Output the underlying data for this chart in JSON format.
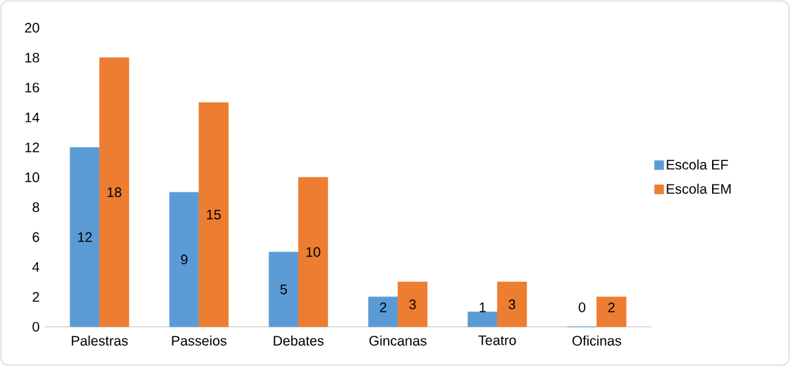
{
  "chart_data": {
    "type": "bar",
    "categories": [
      "Palestras",
      "Passeios",
      "Debates",
      "Gincanas",
      "Teatro",
      "Oficinas"
    ],
    "series": [
      {
        "name": "Escola EF",
        "color": "#5b9bd5",
        "values": [
          12,
          9,
          5,
          2,
          1,
          0
        ]
      },
      {
        "name": "Escola EM",
        "color": "#ed7d31",
        "values": [
          18,
          15,
          10,
          3,
          3,
          2
        ]
      }
    ],
    "ylim": [
      0,
      20
    ],
    "yticks": [
      0,
      2,
      4,
      6,
      8,
      10,
      12,
      14,
      16,
      18,
      20
    ],
    "legend": "right",
    "data_labels": true
  }
}
